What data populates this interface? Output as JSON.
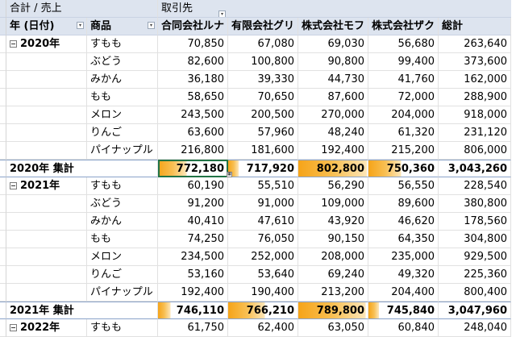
{
  "header": {
    "row1": {
      "value_label": "合計 / 売上",
      "column_field": "取引先"
    },
    "row2": {
      "year_label": "年 (日付)",
      "product_label": "商品",
      "customers": [
        "合同会社ルナ",
        "有限会社グリ",
        "株式会社モフ",
        "株式会社ザク"
      ],
      "total_label": "総計"
    }
  },
  "groups": [
    {
      "year": "2020年",
      "rows": [
        {
          "product": "すもも",
          "values": [
            "70,850",
            "67,080",
            "69,030",
            "56,680"
          ],
          "total": "263,640"
        },
        {
          "product": "ぶどう",
          "values": [
            "82,600",
            "100,800",
            "90,800",
            "99,400"
          ],
          "total": "373,600"
        },
        {
          "product": "みかん",
          "values": [
            "36,180",
            "39,330",
            "44,730",
            "41,760"
          ],
          "total": "162,000"
        },
        {
          "product": "もも",
          "values": [
            "58,650",
            "70,650",
            "87,600",
            "72,000"
          ],
          "total": "288,900"
        },
        {
          "product": "メロン",
          "values": [
            "243,500",
            "200,500",
            "270,000",
            "204,000"
          ],
          "total": "918,000"
        },
        {
          "product": "りんご",
          "values": [
            "63,600",
            "57,960",
            "48,240",
            "61,320"
          ],
          "total": "231,120"
        },
        {
          "product": "パイナップル",
          "values": [
            "216,800",
            "181,600",
            "192,400",
            "215,200"
          ],
          "total": "806,000"
        }
      ],
      "subtotal_label": "2020年 集計",
      "subtotals": [
        "772,180",
        "717,920",
        "802,800",
        "750,360"
      ],
      "subtotal_total": "3,043,260",
      "subtotal_fill": [
        0.31,
        0.0,
        0.99,
        0.38
      ]
    },
    {
      "year": "2021年",
      "rows": [
        {
          "product": "すもも",
          "values": [
            "60,190",
            "55,510",
            "56,290",
            "56,550"
          ],
          "total": "228,540"
        },
        {
          "product": "ぶどう",
          "values": [
            "91,200",
            "91,000",
            "109,000",
            "89,600"
          ],
          "total": "380,800"
        },
        {
          "product": "みかん",
          "values": [
            "40,410",
            "47,610",
            "43,920",
            "46,620"
          ],
          "total": "178,560"
        },
        {
          "product": "もも",
          "values": [
            "74,250",
            "76,050",
            "90,150",
            "64,350"
          ],
          "total": "304,800"
        },
        {
          "product": "メロン",
          "values": [
            "234,500",
            "252,000",
            "208,000",
            "235,000"
          ],
          "total": "929,500"
        },
        {
          "product": "りんご",
          "values": [
            "53,160",
            "53,640",
            "69,240",
            "49,320"
          ],
          "total": "225,360"
        },
        {
          "product": "パイナップル",
          "values": [
            "192,400",
            "190,400",
            "213,200",
            "204,400"
          ],
          "total": "800,400"
        }
      ],
      "subtotal_label": "2021年 集計",
      "subtotals": [
        "746,110",
        "766,210",
        "789,800",
        "745,840"
      ],
      "subtotal_total": "3,047,960",
      "subtotal_fill": [
        0.03,
        0.45,
        0.97,
        0.0
      ]
    },
    {
      "year": "2022年",
      "rows": [
        {
          "product": "すもも",
          "values": [
            "61,750",
            "62,400",
            "63,050",
            "60,840"
          ],
          "total": "248,040"
        }
      ]
    }
  ],
  "colors": {
    "header_bg": "#dde4ef",
    "databar_start": "#f6a419",
    "databar_end": "#fde6b8",
    "selection": "#217346"
  },
  "icons": {
    "dropdown": "filter-dropdown-icon",
    "collapse": "collapse-minus-icon",
    "quick_analysis": "quick-analysis-icon"
  }
}
